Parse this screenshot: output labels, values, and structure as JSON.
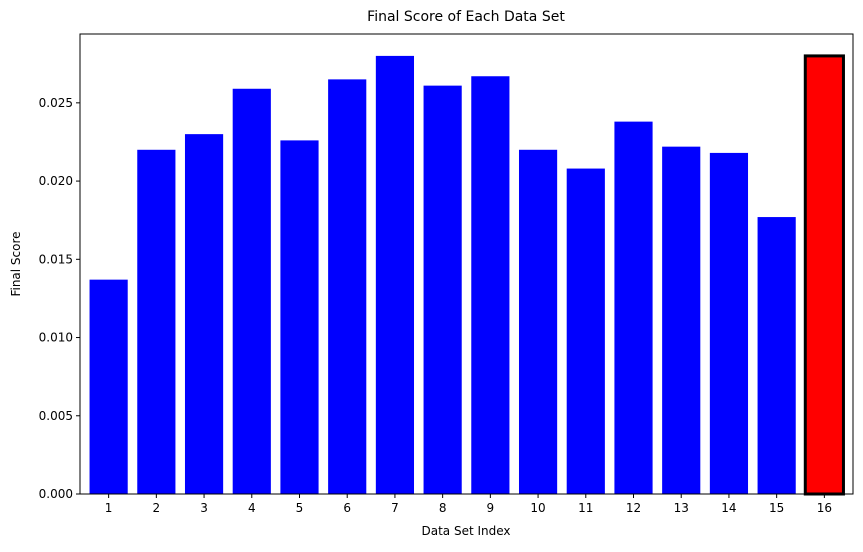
{
  "chart_data": {
    "type": "bar",
    "title": "Final Score of Each Data Set",
    "xlabel": "Data Set Index",
    "ylabel": "Final Score",
    "categories": [
      "1",
      "2",
      "3",
      "4",
      "5",
      "6",
      "7",
      "8",
      "9",
      "10",
      "11",
      "12",
      "13",
      "14",
      "15",
      "16"
    ],
    "values": [
      0.0137,
      0.022,
      0.023,
      0.0259,
      0.0226,
      0.0265,
      0.028,
      0.0261,
      0.0267,
      0.022,
      0.0208,
      0.0238,
      0.0222,
      0.0218,
      0.0177,
      0.028
    ],
    "ylim": [
      0,
      0.0294
    ],
    "yticks": [
      "0.000",
      "0.005",
      "0.010",
      "0.015",
      "0.020",
      "0.025"
    ],
    "grid": false,
    "colors": {
      "bar": "#0000ff",
      "highlight": "#ff0000",
      "highlight_edge": "#000000"
    },
    "highlight_index": 15
  }
}
